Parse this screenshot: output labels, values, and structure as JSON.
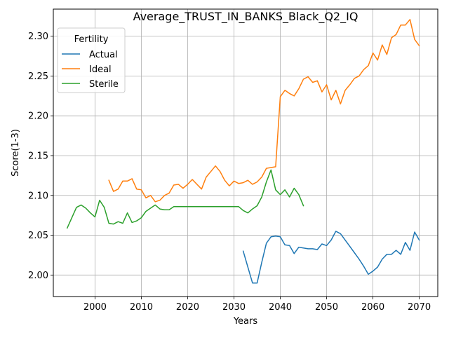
{
  "chart_data": {
    "type": "line",
    "title": "Average_TRUST_IN_BANKS_Black_Q2_IQ",
    "xlabel": "Years",
    "ylabel": "Score(1-3)",
    "xlim": [
      1991,
      2074
    ],
    "ylim": [
      1.973,
      2.334
    ],
    "xticks": [
      2000,
      2010,
      2020,
      2030,
      2040,
      2050,
      2060,
      2070
    ],
    "xtick_labels": [
      "2000",
      "2010",
      "2020",
      "2030",
      "2040",
      "2050",
      "2060",
      "2070"
    ],
    "yticks": [
      2.0,
      2.05,
      2.1,
      2.15,
      2.2,
      2.25,
      2.3
    ],
    "ytick_labels": [
      "2.00",
      "2.05",
      "2.10",
      "2.15",
      "2.20",
      "2.25",
      "2.30"
    ],
    "grid": true,
    "legend": {
      "title": "Fertility",
      "placement": "top-left"
    },
    "series": [
      {
        "name": "Actual",
        "color": "#1f77b4",
        "points": [
          [
            2032,
            2.03
          ],
          [
            2033,
            2.01
          ],
          [
            2034,
            1.99
          ],
          [
            2035,
            1.99
          ],
          [
            2036,
            2.016
          ],
          [
            2037,
            2.04
          ],
          [
            2038,
            2.048
          ],
          [
            2039,
            2.049
          ],
          [
            2040,
            2.048
          ],
          [
            2041,
            2.038
          ],
          [
            2042,
            2.037
          ],
          [
            2043,
            2.027
          ],
          [
            2044,
            2.035
          ],
          [
            2045,
            2.034
          ],
          [
            2046,
            2.033
          ],
          [
            2047,
            2.033
          ],
          [
            2048,
            2.032
          ],
          [
            2049,
            2.039
          ],
          [
            2050,
            2.037
          ],
          [
            2051,
            2.044
          ],
          [
            2052,
            2.055
          ],
          [
            2053,
            2.052
          ],
          [
            2054,
            2.044
          ],
          [
            2055,
            2.036
          ],
          [
            2056,
            2.028
          ],
          [
            2057,
            2.02
          ],
          [
            2058,
            2.011
          ],
          [
            2059,
            2.001
          ],
          [
            2060,
            2.005
          ],
          [
            2061,
            2.01
          ],
          [
            2062,
            2.02
          ],
          [
            2063,
            2.026
          ],
          [
            2064,
            2.026
          ],
          [
            2065,
            2.031
          ],
          [
            2066,
            2.026
          ],
          [
            2067,
            2.041
          ],
          [
            2068,
            2.031
          ],
          [
            2069,
            2.054
          ],
          [
            2070,
            2.044
          ]
        ]
      },
      {
        "name": "Ideal",
        "color": "#ff7f0e",
        "points": [
          [
            2003,
            2.119
          ],
          [
            2004,
            2.105
          ],
          [
            2005,
            2.108
          ],
          [
            2006,
            2.118
          ],
          [
            2007,
            2.118
          ],
          [
            2008,
            2.121
          ],
          [
            2009,
            2.108
          ],
          [
            2010,
            2.107
          ],
          [
            2011,
            2.097
          ],
          [
            2012,
            2.1
          ],
          [
            2013,
            2.092
          ],
          [
            2014,
            2.094
          ],
          [
            2015,
            2.1
          ],
          [
            2016,
            2.103
          ],
          [
            2017,
            2.113
          ],
          [
            2018,
            2.114
          ],
          [
            2019,
            2.109
          ],
          [
            2020,
            2.114
          ],
          [
            2021,
            2.12
          ],
          [
            2022,
            2.114
          ],
          [
            2023,
            2.108
          ],
          [
            2024,
            2.123
          ],
          [
            2025,
            2.13
          ],
          [
            2026,
            2.137
          ],
          [
            2027,
            2.13
          ],
          [
            2028,
            2.119
          ],
          [
            2029,
            2.112
          ],
          [
            2030,
            2.118
          ],
          [
            2031,
            2.115
          ],
          [
            2032,
            2.116
          ],
          [
            2033,
            2.119
          ],
          [
            2034,
            2.114
          ],
          [
            2035,
            2.117
          ],
          [
            2036,
            2.123
          ],
          [
            2037,
            2.134
          ],
          [
            2038,
            2.135
          ],
          [
            2039,
            2.136
          ],
          [
            2040,
            2.224
          ],
          [
            2041,
            2.232
          ],
          [
            2042,
            2.228
          ],
          [
            2043,
            2.225
          ],
          [
            2044,
            2.234
          ],
          [
            2045,
            2.246
          ],
          [
            2046,
            2.249
          ],
          [
            2047,
            2.242
          ],
          [
            2048,
            2.244
          ],
          [
            2049,
            2.23
          ],
          [
            2050,
            2.239
          ],
          [
            2051,
            2.22
          ],
          [
            2052,
            2.232
          ],
          [
            2053,
            2.215
          ],
          [
            2054,
            2.232
          ],
          [
            2055,
            2.239
          ],
          [
            2056,
            2.247
          ],
          [
            2057,
            2.25
          ],
          [
            2058,
            2.258
          ],
          [
            2059,
            2.263
          ],
          [
            2060,
            2.279
          ],
          [
            2061,
            2.27
          ],
          [
            2062,
            2.289
          ],
          [
            2063,
            2.277
          ],
          [
            2064,
            2.298
          ],
          [
            2065,
            2.302
          ],
          [
            2066,
            2.314
          ],
          [
            2067,
            2.314
          ],
          [
            2068,
            2.321
          ],
          [
            2069,
            2.296
          ],
          [
            2070,
            2.288
          ]
        ]
      },
      {
        "name": "Sterile",
        "color": "#2ca02c",
        "points": [
          [
            1994,
            2.059
          ],
          [
            1995,
            2.072
          ],
          [
            1996,
            2.085
          ],
          [
            1997,
            2.088
          ],
          [
            1998,
            2.084
          ],
          [
            1999,
            2.078
          ],
          [
            2000,
            2.073
          ],
          [
            2001,
            2.094
          ],
          [
            2002,
            2.085
          ],
          [
            2003,
            2.065
          ],
          [
            2004,
            2.064
          ],
          [
            2005,
            2.067
          ],
          [
            2006,
            2.065
          ],
          [
            2007,
            2.078
          ],
          [
            2008,
            2.066
          ],
          [
            2009,
            2.068
          ],
          [
            2010,
            2.072
          ],
          [
            2011,
            2.08
          ],
          [
            2012,
            2.084
          ],
          [
            2013,
            2.088
          ],
          [
            2014,
            2.083
          ],
          [
            2015,
            2.082
          ],
          [
            2016,
            2.082
          ],
          [
            2017,
            2.086
          ],
          [
            2018,
            2.086
          ],
          [
            2019,
            2.086
          ],
          [
            2020,
            2.086
          ],
          [
            2021,
            2.086
          ],
          [
            2022,
            2.086
          ],
          [
            2023,
            2.086
          ],
          [
            2024,
            2.086
          ],
          [
            2025,
            2.086
          ],
          [
            2026,
            2.086
          ],
          [
            2027,
            2.086
          ],
          [
            2028,
            2.086
          ],
          [
            2029,
            2.086
          ],
          [
            2030,
            2.086
          ],
          [
            2031,
            2.086
          ],
          [
            2032,
            2.081
          ],
          [
            2033,
            2.078
          ],
          [
            2034,
            2.083
          ],
          [
            2035,
            2.087
          ],
          [
            2036,
            2.098
          ],
          [
            2037,
            2.117
          ],
          [
            2038,
            2.132
          ],
          [
            2039,
            2.107
          ],
          [
            2040,
            2.101
          ],
          [
            2041,
            2.107
          ],
          [
            2042,
            2.098
          ],
          [
            2043,
            2.109
          ],
          [
            2044,
            2.101
          ],
          [
            2045,
            2.087
          ]
        ]
      }
    ]
  }
}
